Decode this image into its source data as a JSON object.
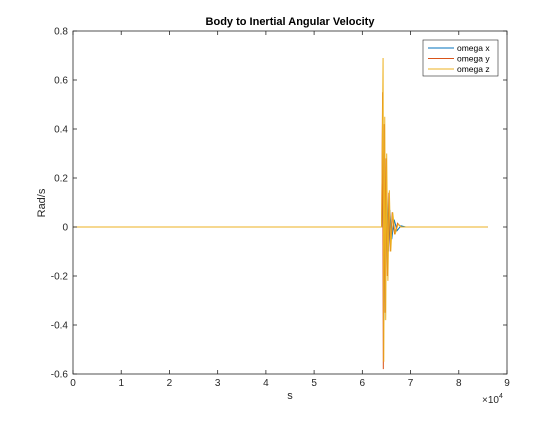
{
  "chart_data": {
    "type": "line",
    "title": "Body to Inertial Angular Velocity",
    "xlabel": "s",
    "ylabel": "Rad/s",
    "x_exponent_label": "×10",
    "x_exponent_power": "4",
    "xlim": [
      0,
      90000
    ],
    "ylim": [
      -0.6,
      0.8
    ],
    "x_ticks": [
      0,
      10000,
      20000,
      30000,
      40000,
      50000,
      60000,
      70000,
      80000,
      90000
    ],
    "x_tick_labels": [
      "0",
      "1",
      "2",
      "3",
      "4",
      "5",
      "6",
      "7",
      "8",
      "9"
    ],
    "y_ticks": [
      -0.6,
      -0.4,
      -0.2,
      0,
      0.2,
      0.4,
      0.6,
      0.8
    ],
    "y_tick_labels": [
      "-0.6",
      "-0.4",
      "-0.2",
      "0",
      "0.2",
      "0.4",
      "0.6",
      "0.8"
    ],
    "grid": false,
    "legend_position": "top-right",
    "series": [
      {
        "name": "omega x",
        "color": "#0072BD",
        "points": [
          [
            0,
            0
          ],
          [
            64000,
            0
          ],
          [
            64300,
            0.3
          ],
          [
            64500,
            -0.38
          ],
          [
            64700,
            0.22
          ],
          [
            64900,
            -0.18
          ],
          [
            65100,
            0.14
          ],
          [
            65400,
            -0.1
          ],
          [
            65700,
            0.07
          ],
          [
            66100,
            -0.05
          ],
          [
            66600,
            0.03
          ],
          [
            67200,
            -0.015
          ],
          [
            68000,
            0.005
          ],
          [
            69000,
            0
          ],
          [
            86000,
            0
          ]
        ]
      },
      {
        "name": "omega y",
        "color": "#D95319",
        "points": [
          [
            0,
            0
          ],
          [
            64000,
            0
          ],
          [
            64200,
            0.55
          ],
          [
            64350,
            -0.58
          ],
          [
            64550,
            0.42
          ],
          [
            64750,
            -0.35
          ],
          [
            64950,
            0.28
          ],
          [
            65200,
            -0.2
          ],
          [
            65500,
            0.14
          ],
          [
            65800,
            -0.1
          ],
          [
            66200,
            0.06
          ],
          [
            66700,
            -0.03
          ],
          [
            67300,
            0.015
          ],
          [
            68000,
            0
          ],
          [
            86000,
            0
          ]
        ]
      },
      {
        "name": "omega z",
        "color": "#EDB120",
        "points": [
          [
            0,
            0
          ],
          [
            64000,
            0
          ],
          [
            64300,
            0.69
          ],
          [
            64450,
            -0.55
          ],
          [
            64650,
            0.45
          ],
          [
            64850,
            -0.38
          ],
          [
            65050,
            0.3
          ],
          [
            65300,
            -0.22
          ],
          [
            65600,
            0.15
          ],
          [
            65900,
            -0.1
          ],
          [
            66300,
            0.06
          ],
          [
            66800,
            -0.03
          ],
          [
            67400,
            0.012
          ],
          [
            68000,
            0
          ],
          [
            86000,
            0
          ]
        ]
      }
    ]
  }
}
